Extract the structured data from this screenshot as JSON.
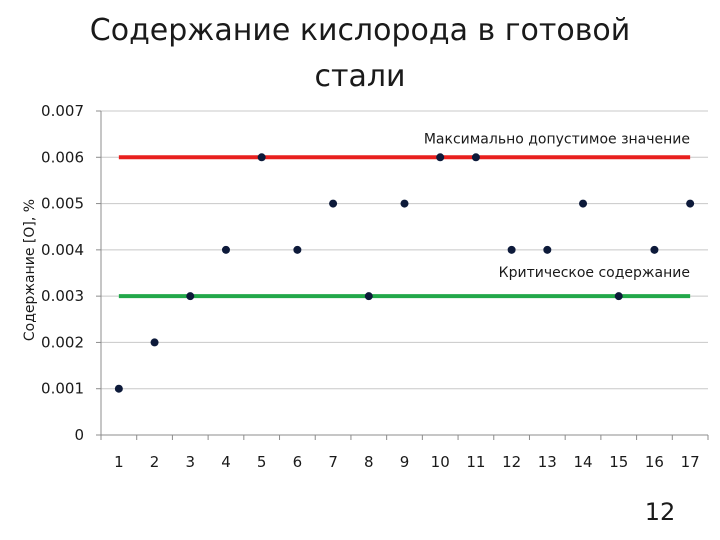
{
  "page": {
    "title": "Содержание кислорода  в  готовой\nстали",
    "page_number": "12"
  },
  "chart_data": {
    "type": "scatter",
    "title": "Содержание кислорода  в  готовой стали",
    "ylabel": "Содержание [O], %",
    "xlabel": "",
    "categories": [
      "1",
      "2",
      "3",
      "4",
      "5",
      "6",
      "7",
      "8",
      "9",
      "10",
      "11",
      "12",
      "13",
      "14",
      "15",
      "16",
      "17"
    ],
    "y_ticks": [
      "0",
      "0.001",
      "0.002",
      "0.003",
      "0.004",
      "0.005",
      "0.006",
      "0.007"
    ],
    "ylim": [
      0,
      0.007
    ],
    "grid": "horizontal",
    "series": [
      {
        "values": [
          0.001,
          0.002,
          0.003,
          0.004,
          0.006,
          0.004,
          0.005,
          0.003,
          0.005,
          0.006,
          0.006,
          0.004,
          0.004,
          0.005,
          0.003,
          0.004,
          0.005
        ],
        "color": "#0d1a3a"
      }
    ],
    "reference_lines": [
      {
        "label": "Максимально допустимое значение",
        "value": 0.006,
        "color": "#e8201e"
      },
      {
        "label": "Критическое содержание",
        "value": 0.003,
        "color": "#22a84a"
      }
    ]
  }
}
